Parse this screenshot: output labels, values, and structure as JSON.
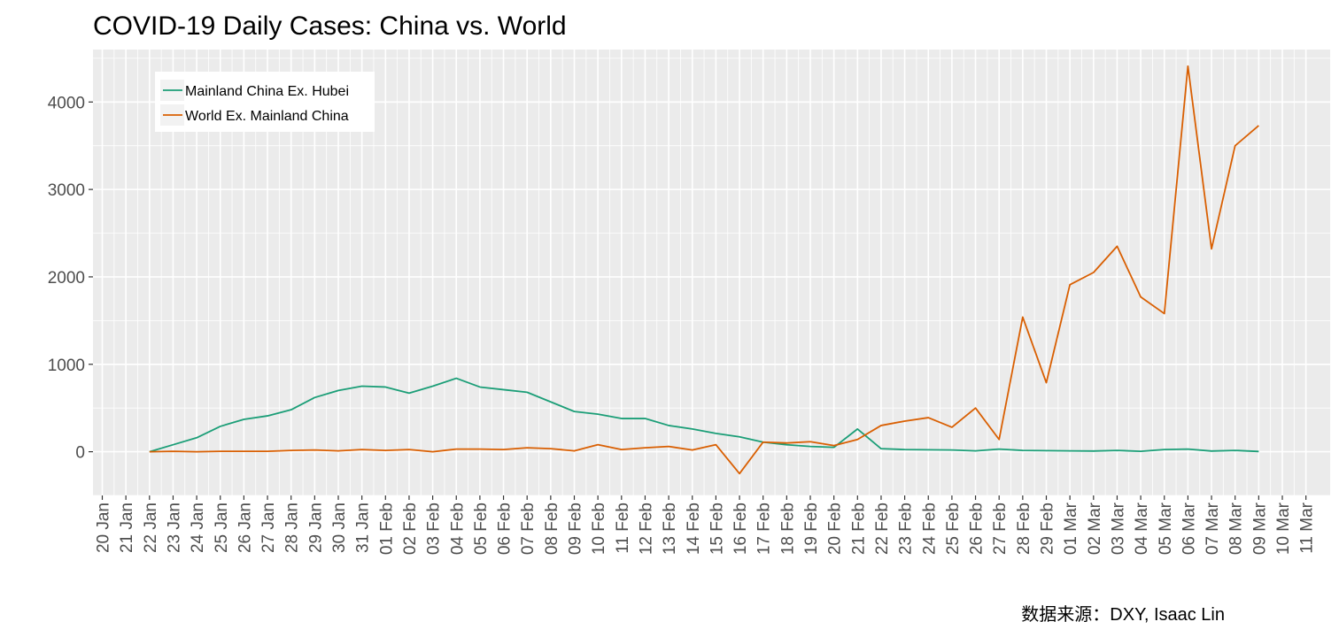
{
  "chart_data": {
    "type": "line",
    "title": "COVID-19 Daily Cases: China vs. World",
    "xlabel": "",
    "ylabel": "",
    "caption": "数据来源：DXY, Isaac Lin",
    "ylim": [
      -500,
      4600
    ],
    "yticks": [
      0,
      1000,
      2000,
      3000,
      4000
    ],
    "x_tick_labels": [
      "20 Jan",
      "21 Jan",
      "22 Jan",
      "23 Jan",
      "24 Jan",
      "25 Jan",
      "26 Jan",
      "27 Jan",
      "28 Jan",
      "29 Jan",
      "30 Jan",
      "31 Jan",
      "01 Feb",
      "02 Feb",
      "03 Feb",
      "04 Feb",
      "05 Feb",
      "06 Feb",
      "07 Feb",
      "08 Feb",
      "09 Feb",
      "10 Feb",
      "11 Feb",
      "12 Feb",
      "13 Feb",
      "14 Feb",
      "15 Feb",
      "16 Feb",
      "17 Feb",
      "18 Feb",
      "19 Feb",
      "20 Feb",
      "21 Feb",
      "22 Feb",
      "23 Feb",
      "24 Feb",
      "25 Feb",
      "26 Feb",
      "27 Feb",
      "28 Feb",
      "29 Feb",
      "01 Mar",
      "02 Mar",
      "03 Mar",
      "04 Mar",
      "05 Mar",
      "06 Mar",
      "07 Mar",
      "08 Mar",
      "09 Mar",
      "10 Mar",
      "11 Mar"
    ],
    "grid": true,
    "legend_position": "top-left",
    "x": [
      "22 Jan",
      "23 Jan",
      "24 Jan",
      "25 Jan",
      "26 Jan",
      "27 Jan",
      "28 Jan",
      "29 Jan",
      "30 Jan",
      "31 Jan",
      "01 Feb",
      "02 Feb",
      "03 Feb",
      "04 Feb",
      "05 Feb",
      "06 Feb",
      "07 Feb",
      "08 Feb",
      "09 Feb",
      "10 Feb",
      "11 Feb",
      "12 Feb",
      "13 Feb",
      "14 Feb",
      "15 Feb",
      "16 Feb",
      "17 Feb",
      "18 Feb",
      "19 Feb",
      "20 Feb",
      "21 Feb",
      "22 Feb",
      "23 Feb",
      "24 Feb",
      "25 Feb",
      "26 Feb",
      "27 Feb",
      "28 Feb",
      "29 Feb",
      "01 Mar",
      "02 Mar",
      "03 Mar",
      "04 Mar",
      "05 Mar",
      "06 Mar",
      "07 Mar",
      "08 Mar",
      "09 Mar"
    ],
    "series": [
      {
        "name": "Mainland China Ex. Hubei",
        "color": "#1b9e77",
        "values": [
          0,
          80,
          160,
          290,
          370,
          410,
          480,
          620,
          700,
          750,
          740,
          670,
          750,
          840,
          740,
          710,
          680,
          570,
          460,
          430,
          380,
          380,
          300,
          260,
          210,
          170,
          110,
          80,
          60,
          50,
          260,
          35,
          25,
          22,
          20,
          10,
          30,
          15,
          12,
          10,
          8,
          15,
          5,
          25,
          30,
          8,
          15,
          3
        ]
      },
      {
        "name": "World Ex. Mainland China",
        "color": "#d95f02",
        "values": [
          0,
          5,
          0,
          5,
          5,
          5,
          15,
          20,
          10,
          25,
          15,
          25,
          0,
          30,
          30,
          25,
          45,
          35,
          10,
          80,
          25,
          45,
          60,
          20,
          80,
          -250,
          110,
          100,
          115,
          70,
          140,
          300,
          350,
          390,
          280,
          500,
          140,
          1540,
          790,
          1910,
          2050,
          2350,
          1770,
          1580,
          4410,
          2320,
          3500,
          3730
        ]
      }
    ]
  }
}
